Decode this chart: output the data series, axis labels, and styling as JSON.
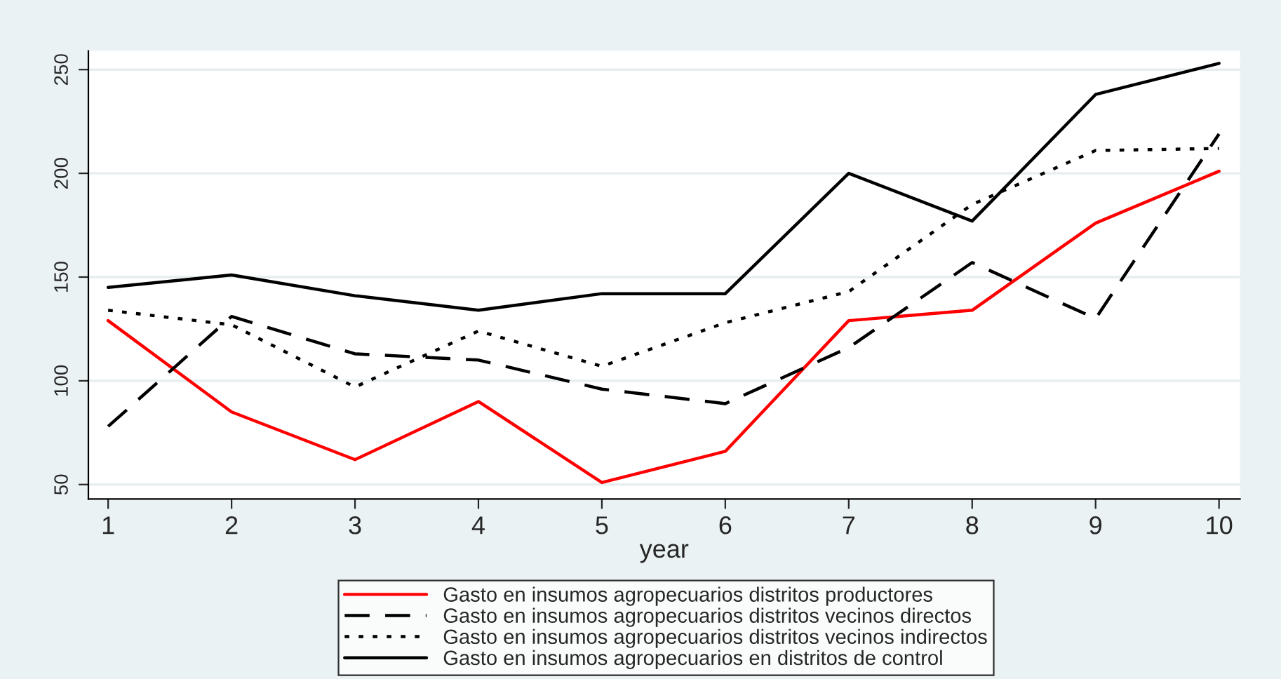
{
  "chart_data": {
    "type": "line",
    "xlabel": "year",
    "x": [
      1,
      2,
      3,
      4,
      5,
      6,
      7,
      8,
      9,
      10
    ],
    "xlim": [
      0.84,
      10.17
    ],
    "xticks": [
      1,
      2,
      3,
      4,
      5,
      6,
      7,
      8,
      9,
      10
    ],
    "ylim": [
      43,
      259
    ],
    "yticks": [
      50,
      100,
      150,
      200,
      250
    ],
    "grid": "y",
    "legend": "bottom",
    "marker": "none",
    "series": [
      {
        "name": "Gasto en insumos agropecuarios distritos productores",
        "color": "#ff0000",
        "line_style": "solid",
        "values": [
          129,
          85,
          62,
          90,
          51,
          66,
          129,
          134,
          176,
          201
        ]
      },
      {
        "name": "Gasto en insumos agropecuarios distritos vecinos directos",
        "color": "#000000",
        "line_style": "dashed",
        "values": [
          78,
          131,
          113,
          110,
          96,
          89,
          116,
          157,
          130,
          219
        ]
      },
      {
        "name": "Gasto en insumos agropecuarios distritos vecinos indirectos",
        "color": "#000000",
        "line_style": "dotted",
        "values": [
          134,
          127,
          97,
          124,
          107,
          128,
          143,
          185,
          211,
          212
        ]
      },
      {
        "name": "Gasto en insumos agropecuarios en distritos de control",
        "color": "#000000",
        "line_style": "solid",
        "values": [
          145,
          151,
          141,
          134,
          142,
          142,
          200,
          177,
          238,
          253
        ]
      }
    ]
  }
}
